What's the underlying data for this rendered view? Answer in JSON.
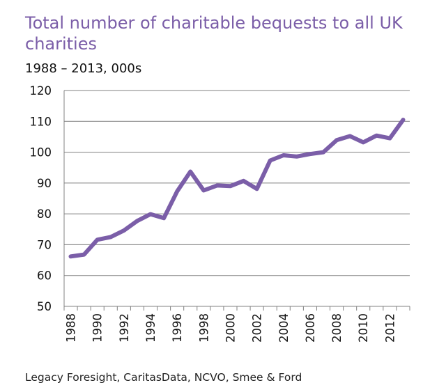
{
  "title": "Total number of charitable bequests to all UK charities",
  "subtitle": "1988 – 2013, 000s",
  "source": "Legacy Foresight, CaritasData, NCVO, Smee & Ford",
  "colors": {
    "title": "#7b5ea8",
    "line": "#7b5ea8",
    "grid": "#808080",
    "text": "#111111"
  },
  "chart_data": {
    "type": "line",
    "title": "Total number of charitable bequests to all UK charities",
    "subtitle": "1988 – 2013, 000s",
    "xlabel": "",
    "ylabel": "",
    "ylim": [
      50,
      120
    ],
    "yticks": [
      "50",
      "60",
      "70",
      "80",
      "90",
      "100",
      "110",
      "120"
    ],
    "xlim": [
      1987.5,
      2013.5
    ],
    "xticks": [
      "1988",
      "1990",
      "1992",
      "1994",
      "1996",
      "1998",
      "2000",
      "2002",
      "2004",
      "2006",
      "2008",
      "2010",
      "2012"
    ],
    "grid": "horizontal",
    "legend": "none",
    "series": [
      {
        "x": [
          1988,
          1989,
          1990,
          1991,
          1992,
          1993,
          1994,
          1995,
          1996,
          1997,
          1998,
          1999,
          2000,
          2001,
          2002,
          2003,
          2004,
          2005,
          2006,
          2007,
          2008,
          2009,
          2010,
          2011,
          2012,
          2013
        ],
        "values": [
          66.2,
          66.8,
          71.6,
          72.5,
          74.6,
          77.7,
          79.9,
          78.6,
          87.3,
          93.7,
          87.6,
          89.2,
          89.0,
          90.7,
          88.1,
          97.3,
          99.0,
          98.6,
          99.4,
          100.0,
          103.9,
          105.2,
          103.2,
          105.4,
          104.5,
          110.5
        ]
      }
    ]
  }
}
